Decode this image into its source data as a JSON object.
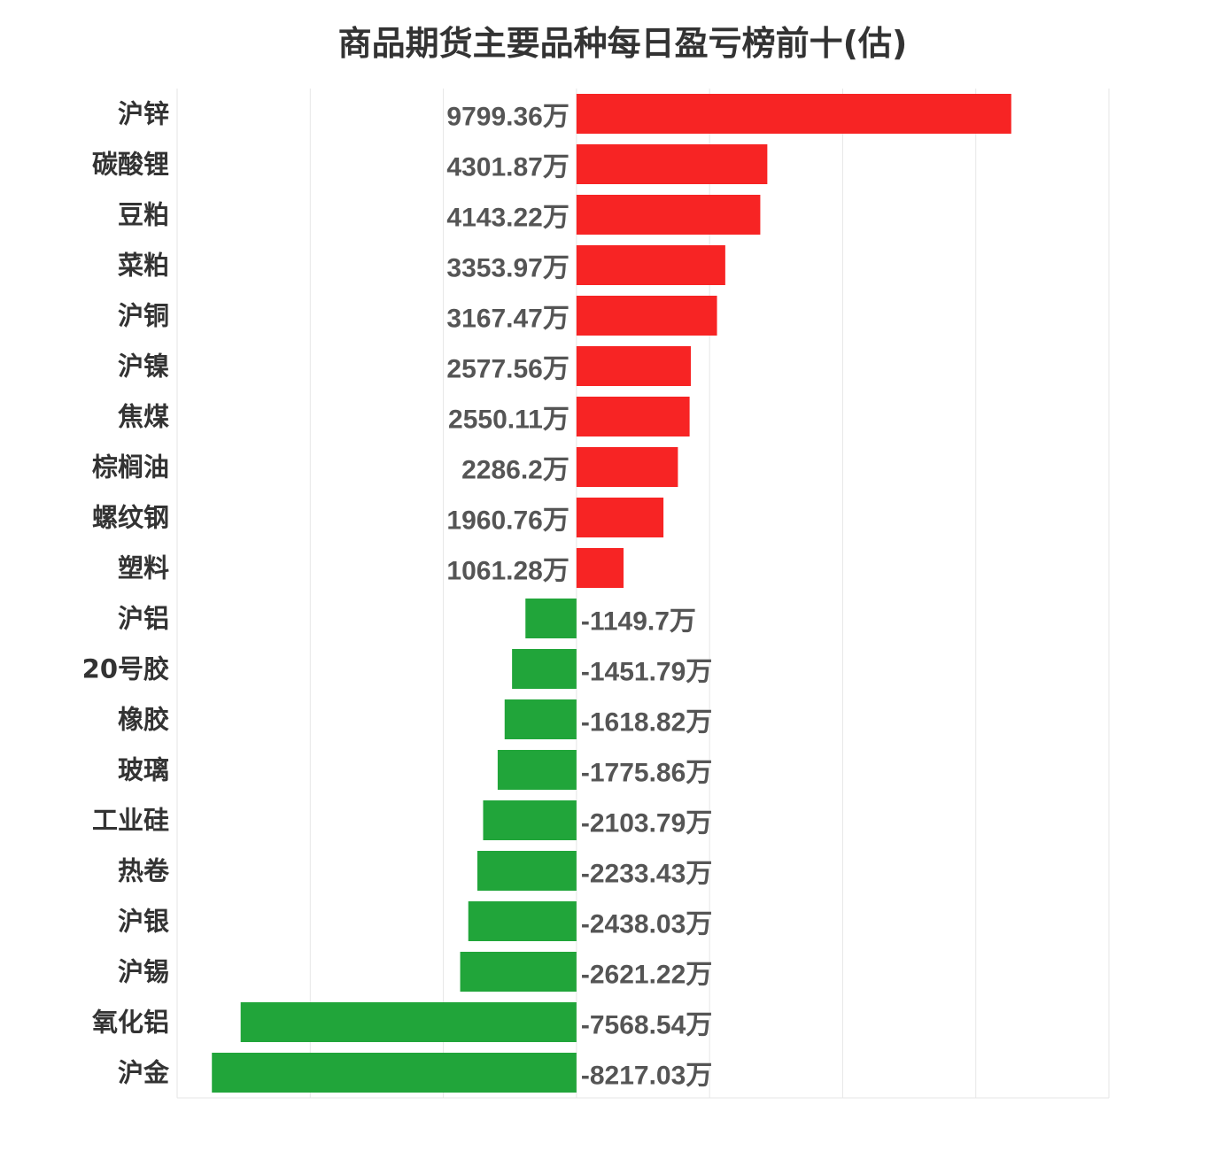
{
  "chart_data": {
    "type": "bar",
    "orientation": "horizontal",
    "title": "商品期货主要品种每日盈亏榜前十(估)",
    "unit": "万",
    "categories": [
      "沪锌",
      "碳酸锂",
      "豆粕",
      "菜粕",
      "沪铜",
      "沪镍",
      "焦煤",
      "棕榈油",
      "螺纹钢",
      "塑料",
      "沪铝",
      "20号胶",
      "橡胶",
      "玻璃",
      "工业硅",
      "热卷",
      "沪银",
      "沪锡",
      "氧化铝",
      "沪金"
    ],
    "values": [
      9799.36,
      4301.87,
      4143.22,
      3353.97,
      3167.47,
      2577.56,
      2550.11,
      2286.2,
      1960.76,
      1061.28,
      -1149.7,
      -1451.79,
      -1618.82,
      -1775.86,
      -2103.79,
      -2233.43,
      -2438.03,
      -2621.22,
      -7568.54,
      -8217.03
    ],
    "labels": [
      "9799.36万",
      "4301.87万",
      "4143.22万",
      "3353.97万",
      "3167.47万",
      "2577.56万",
      "2550.11万",
      "2286.2万",
      "1960.76万",
      "1061.28万",
      "-1149.7万",
      "-1451.79万",
      "-1618.82万",
      "-1775.86万",
      "-2103.79万",
      "-2233.43万",
      "-2438.03万",
      "-2621.22万",
      "-7568.54万",
      "-8217.03万"
    ],
    "xlim": [
      -9000,
      12000
    ],
    "grid": true,
    "legend": "none",
    "colors": {
      "positive": "#f72424",
      "negative": "#21a53a"
    }
  }
}
